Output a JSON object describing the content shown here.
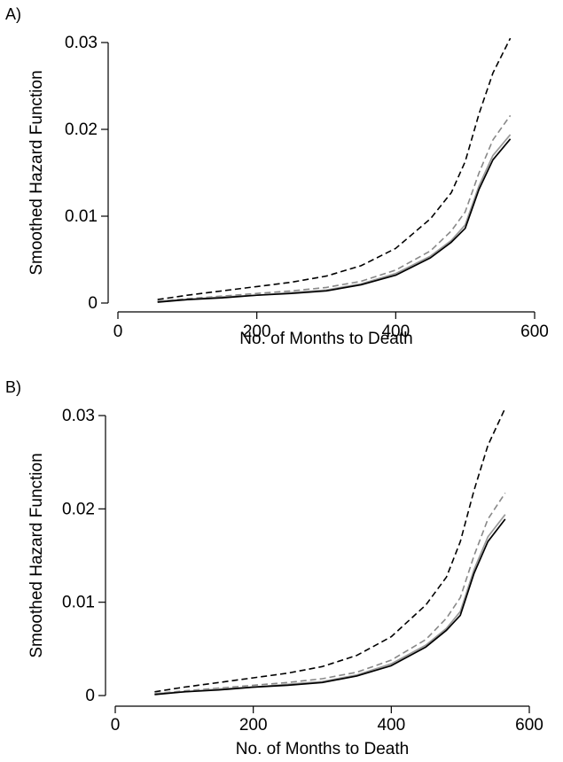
{
  "chart_data": [
    {
      "type": "line",
      "panel_label": "A)",
      "xlabel": "No. of Months to Death",
      "ylabel": "Smoothed Hazard Function",
      "xlim": [
        0,
        600
      ],
      "ylim": [
        0,
        0.031
      ],
      "x_ticks": [
        0,
        200,
        400,
        600
      ],
      "x_tick_labels": [
        "0",
        "200",
        "400",
        "600"
      ],
      "y_ticks": [
        0,
        0.01,
        0.02,
        0.03
      ],
      "y_tick_labels": [
        "0",
        "0.01",
        "0.02",
        "0.03"
      ],
      "grid": false,
      "series": [
        {
          "style": "dash",
          "color": "#000000",
          "x": [
            57,
            100,
            150,
            200,
            250,
            300,
            350,
            400,
            450,
            480,
            500,
            520,
            540,
            565
          ],
          "y": [
            0.0004,
            0.0009,
            0.0014,
            0.0019,
            0.0024,
            0.0031,
            0.0043,
            0.0063,
            0.0097,
            0.0127,
            0.0163,
            0.0218,
            0.0265,
            0.0305
          ]
        },
        {
          "style": "dash",
          "color": "#888888",
          "x": [
            57,
            100,
            150,
            200,
            250,
            300,
            350,
            400,
            450,
            480,
            500,
            520,
            540,
            565
          ],
          "y": [
            0.0002,
            0.0005,
            0.0008,
            0.0011,
            0.0014,
            0.0018,
            0.0025,
            0.0038,
            0.006,
            0.0083,
            0.0105,
            0.015,
            0.0188,
            0.0216
          ]
        },
        {
          "style": "solid",
          "color": "#999999",
          "x": [
            57,
            100,
            150,
            200,
            250,
            300,
            350,
            400,
            450,
            480,
            500,
            520,
            540,
            565
          ],
          "y": [
            0.0002,
            0.0004,
            0.0007,
            0.0009,
            0.0012,
            0.0015,
            0.0022,
            0.0034,
            0.0054,
            0.0072,
            0.009,
            0.0135,
            0.017,
            0.0194
          ]
        },
        {
          "style": "solid",
          "color": "#000000",
          "x": [
            57,
            100,
            150,
            200,
            250,
            300,
            350,
            400,
            450,
            480,
            500,
            520,
            540,
            565
          ],
          "y": [
            0.0001,
            0.0004,
            0.0006,
            0.0009,
            0.0011,
            0.0014,
            0.0021,
            0.0032,
            0.0052,
            0.007,
            0.0086,
            0.0131,
            0.0165,
            0.0189
          ]
        }
      ]
    },
    {
      "type": "line",
      "panel_label": "B)",
      "xlabel": "No. of Months to Death",
      "ylabel": "Smoothed Hazard Function",
      "xlim": [
        0,
        600
      ],
      "ylim": [
        0,
        0.031
      ],
      "x_ticks": [
        0,
        200,
        400,
        600
      ],
      "x_tick_labels": [
        "0",
        "200",
        "400",
        "600"
      ],
      "y_ticks": [
        0,
        0.01,
        0.02,
        0.03
      ],
      "y_tick_labels": [
        "0",
        "0.01",
        "0.02",
        "0.03"
      ],
      "grid": false,
      "series": [
        {
          "style": "dash",
          "color": "#000000",
          "x": [
            57,
            100,
            150,
            200,
            250,
            300,
            350,
            400,
            450,
            480,
            500,
            520,
            540,
            565
          ],
          "y": [
            0.0004,
            0.0009,
            0.0014,
            0.0019,
            0.0024,
            0.0031,
            0.0043,
            0.0063,
            0.0097,
            0.0127,
            0.0165,
            0.022,
            0.0268,
            0.0308
          ]
        },
        {
          "style": "dash",
          "color": "#888888",
          "x": [
            57,
            100,
            150,
            200,
            250,
            300,
            350,
            400,
            450,
            480,
            500,
            520,
            540,
            565
          ],
          "y": [
            0.0002,
            0.0005,
            0.0008,
            0.0011,
            0.0014,
            0.0018,
            0.0025,
            0.0038,
            0.006,
            0.0083,
            0.0105,
            0.015,
            0.0189,
            0.0217
          ]
        },
        {
          "style": "solid",
          "color": "#999999",
          "x": [
            57,
            100,
            150,
            200,
            250,
            300,
            350,
            400,
            450,
            480,
            500,
            520,
            540,
            565
          ],
          "y": [
            0.0002,
            0.0004,
            0.0007,
            0.0009,
            0.0012,
            0.0015,
            0.0022,
            0.0034,
            0.0054,
            0.0072,
            0.009,
            0.0135,
            0.017,
            0.0194
          ]
        },
        {
          "style": "solid",
          "color": "#000000",
          "x": [
            57,
            100,
            150,
            200,
            250,
            300,
            350,
            400,
            450,
            480,
            500,
            520,
            540,
            565
          ],
          "y": [
            0.0001,
            0.0004,
            0.0006,
            0.0009,
            0.0011,
            0.0014,
            0.0021,
            0.0032,
            0.0052,
            0.007,
            0.0086,
            0.0131,
            0.0165,
            0.0189
          ]
        }
      ]
    }
  ]
}
